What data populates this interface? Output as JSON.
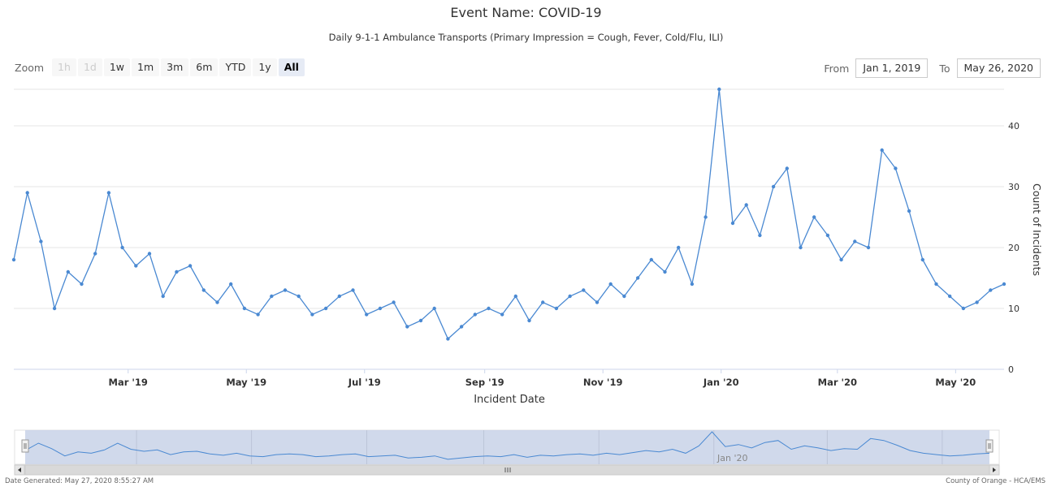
{
  "header": {
    "title": "Event Name: COVID-19",
    "subtitle": "Daily 9-1-1 Ambulance Transports (Primary Impression = Cough, Fever, Cold/Flu, ILI)"
  },
  "range_selector": {
    "zoom_label": "Zoom",
    "buttons": [
      {
        "label": "1h",
        "state": "disabled"
      },
      {
        "label": "1d",
        "state": "disabled"
      },
      {
        "label": "1w",
        "state": "normal"
      },
      {
        "label": "1m",
        "state": "normal"
      },
      {
        "label": "3m",
        "state": "normal"
      },
      {
        "label": "6m",
        "state": "normal"
      },
      {
        "label": "YTD",
        "state": "normal"
      },
      {
        "label": "1y",
        "state": "normal"
      },
      {
        "label": "All",
        "state": "active"
      }
    ],
    "from_label": "From",
    "from_value": "Jan 1, 2019",
    "to_label": "To",
    "to_value": "May 26, 2020"
  },
  "colors": {
    "series": "#4a89d2",
    "navigator_fill": "#c8d2e8",
    "grid": "#e6e6e6"
  },
  "chart_data": {
    "type": "line",
    "xlabel": "Incident Date",
    "ylabel": "Count of Incidents",
    "ylim": [
      0,
      46
    ],
    "y_ticks": [
      0,
      10,
      20,
      30,
      40
    ],
    "x_start": "2019-01-01",
    "x_end": "2020-05-26",
    "x_ticks": [
      {
        "label": "Mar '19",
        "date": "2019-03-01"
      },
      {
        "label": "May '19",
        "date": "2019-05-01"
      },
      {
        "label": "Jul '19",
        "date": "2019-07-01"
      },
      {
        "label": "Sep '19",
        "date": "2019-09-01"
      },
      {
        "label": "Nov '19",
        "date": "2019-11-01"
      },
      {
        "label": "Jan '20",
        "date": "2020-01-01"
      },
      {
        "label": "Mar '20",
        "date": "2020-03-01"
      },
      {
        "label": "May '20",
        "date": "2020-05-01"
      }
    ],
    "grid": true,
    "legend": "none",
    "series": [
      {
        "x": [
          "2019-01-01",
          "2019-01-08",
          "2019-01-15",
          "2019-01-22",
          "2019-01-29",
          "2019-02-05",
          "2019-02-12",
          "2019-02-19",
          "2019-02-26",
          "2019-03-05",
          "2019-03-12",
          "2019-03-19",
          "2019-03-26",
          "2019-04-02",
          "2019-04-09",
          "2019-04-16",
          "2019-04-23",
          "2019-04-30",
          "2019-05-07",
          "2019-05-14",
          "2019-05-21",
          "2019-05-28",
          "2019-06-04",
          "2019-06-11",
          "2019-06-18",
          "2019-06-25",
          "2019-07-02",
          "2019-07-09",
          "2019-07-16",
          "2019-07-23",
          "2019-07-30",
          "2019-08-06",
          "2019-08-13",
          "2019-08-20",
          "2019-08-27",
          "2019-09-03",
          "2019-09-10",
          "2019-09-17",
          "2019-09-24",
          "2019-10-01",
          "2019-10-08",
          "2019-10-15",
          "2019-10-22",
          "2019-10-29",
          "2019-11-05",
          "2019-11-12",
          "2019-11-19",
          "2019-11-26",
          "2019-12-03",
          "2019-12-10",
          "2019-12-17",
          "2019-12-24",
          "2019-12-31",
          "2020-01-07",
          "2020-01-14",
          "2020-01-21",
          "2020-01-28",
          "2020-02-04",
          "2020-02-11",
          "2020-02-18",
          "2020-02-25",
          "2020-03-03",
          "2020-03-10",
          "2020-03-17",
          "2020-03-24",
          "2020-03-31",
          "2020-04-07",
          "2020-04-14",
          "2020-04-21",
          "2020-04-28",
          "2020-05-05",
          "2020-05-12",
          "2020-05-19",
          "2020-05-26"
        ],
        "values": [
          18,
          29,
          21,
          10,
          16,
          14,
          19,
          29,
          20,
          17,
          19,
          12,
          16,
          17,
          13,
          11,
          14,
          10,
          9,
          12,
          13,
          12,
          9,
          10,
          12,
          13,
          9,
          10,
          11,
          7,
          8,
          10,
          5,
          7,
          9,
          10,
          9,
          12,
          8,
          11,
          10,
          12,
          13,
          11,
          14,
          12,
          15,
          18,
          16,
          20,
          14,
          25,
          46,
          24,
          27,
          22,
          30,
          33,
          20,
          25,
          22,
          18,
          21,
          20,
          36,
          33,
          26,
          18,
          14,
          12,
          10,
          11,
          13,
          14
        ]
      }
    ]
  },
  "navigator": {
    "x_labels": [
      "Jan '20"
    ]
  },
  "footer": {
    "left": "Date Generated: May 27, 2020 8:55:27 AM",
    "right": "County of Orange - HCA/EMS"
  }
}
